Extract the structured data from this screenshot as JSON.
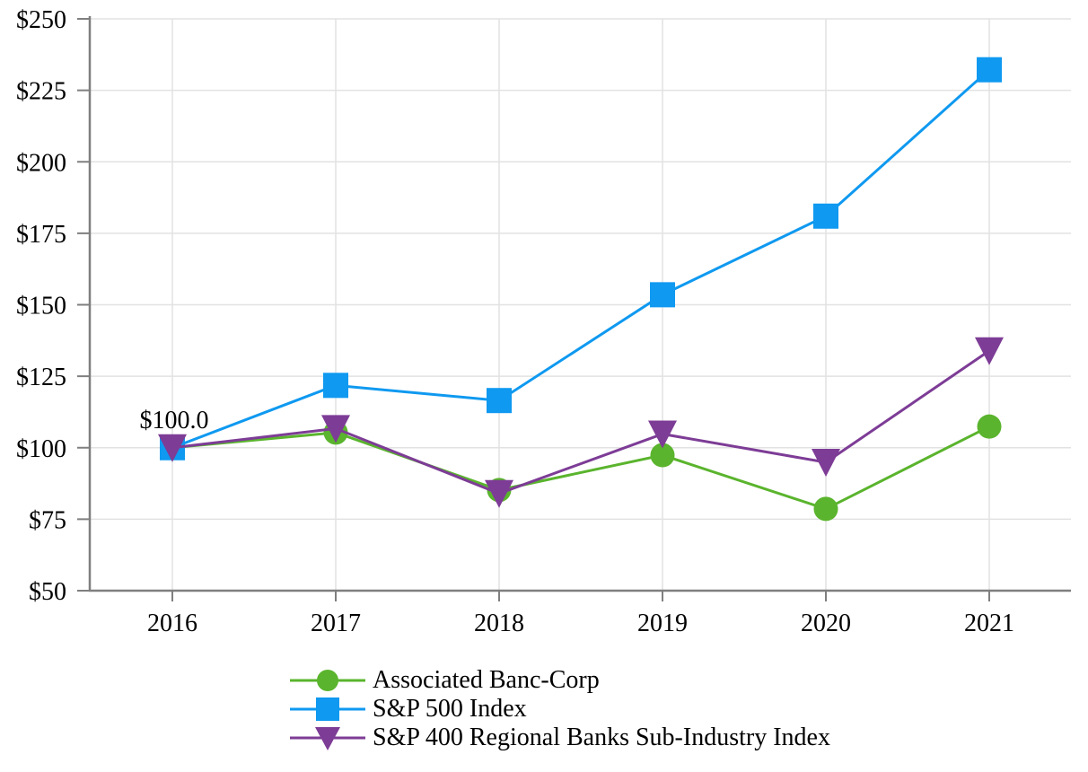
{
  "chart_data": {
    "type": "line",
    "title": "",
    "xlabel": "",
    "ylabel": "",
    "categories": [
      "2016",
      "2017",
      "2018",
      "2019",
      "2020",
      "2021"
    ],
    "series": [
      {
        "name": "Associated Banc-Corp",
        "marker": "circle",
        "color": "#5AB42D",
        "values": [
          100.0,
          105.3,
          85.2,
          97.4,
          78.6,
          107.4
        ]
      },
      {
        "name": "S&P 500 Index",
        "marker": "square",
        "color": "#0F99F0",
        "values": [
          100.0,
          121.8,
          116.5,
          153.5,
          181.0,
          232.2
        ]
      },
      {
        "name": "S&P 400 Regional Banks Sub-Industry Index",
        "marker": "triangle-down",
        "color": "#7D3C96",
        "values": [
          100.0,
          106.7,
          84.0,
          104.8,
          94.9,
          133.9
        ]
      }
    ],
    "y_ticks": [
      {
        "label": "$50",
        "value": 50
      },
      {
        "label": "$75",
        "value": 75
      },
      {
        "label": "$100",
        "value": 100
      },
      {
        "label": "$125",
        "value": 125
      },
      {
        "label": "$150",
        "value": 150
      },
      {
        "label": "$175",
        "value": 175
      },
      {
        "label": "$200",
        "value": 200
      },
      {
        "label": "$225",
        "value": 225
      },
      {
        "label": "$250",
        "value": 250
      }
    ],
    "ylim": [
      50,
      250
    ],
    "grid": true,
    "legend_position": "bottom",
    "annotation": {
      "text": "$100.0",
      "category": "2016",
      "value": 100
    },
    "axis_color": "#7F7F7F",
    "grid_color": "#E2E2E2",
    "text_color": "#000000",
    "background_color": "#FFFFFF"
  }
}
